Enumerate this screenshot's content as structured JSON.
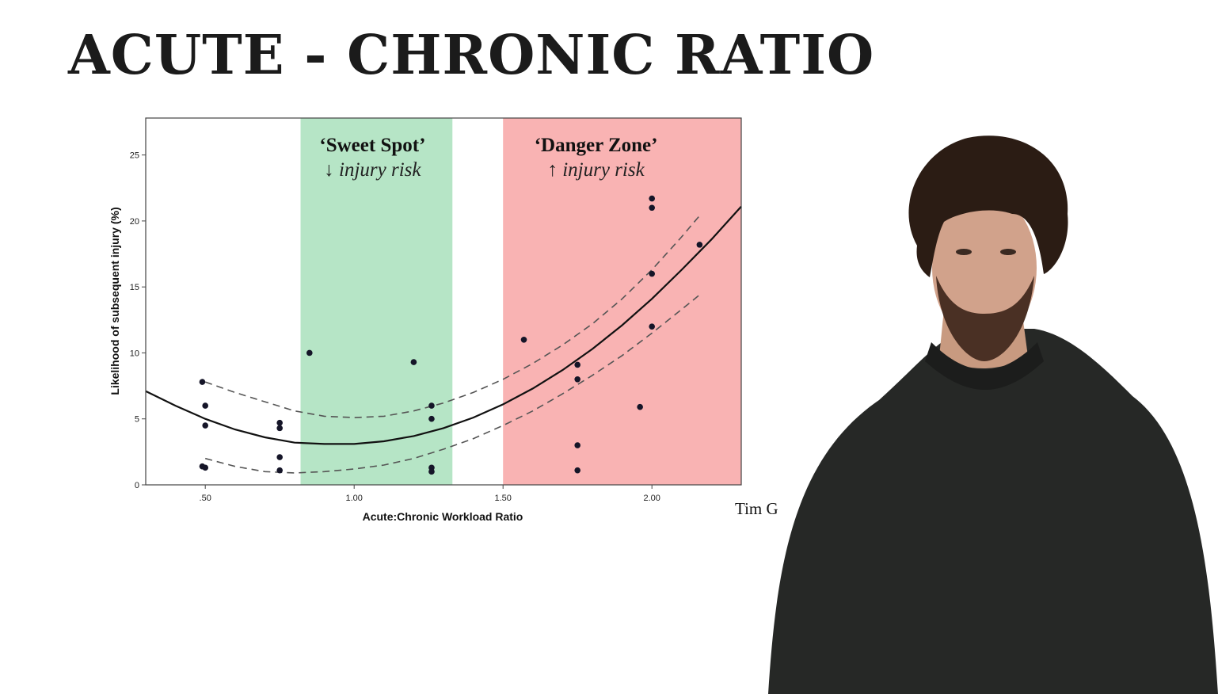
{
  "slide": {
    "title": "ACUTE - CHRONIC RATIO",
    "citation": "Tim G"
  },
  "colors": {
    "sweet_spot_band": "#b6e5c6",
    "danger_zone_band": "#f9b3b3",
    "axis": "#444444",
    "curve": "#111111",
    "points": "#151528"
  },
  "chart_data": {
    "type": "scatter",
    "title": "",
    "xlabel": "Acute:Chronic Workload Ratio",
    "ylabel": "Likelihood of subsequent injury (%)",
    "xlim": [
      0.3,
      2.3
    ],
    "ylim": [
      0,
      27.8
    ],
    "x_ticks": [
      ".50",
      "1.00",
      "1.50",
      "2.00"
    ],
    "y_ticks": [
      "0",
      "5",
      "10",
      "15",
      "20",
      "25"
    ],
    "grid": false,
    "zones": [
      {
        "title": "‘Sweet Spot’",
        "subtitle": "↓ injury risk",
        "x_range": [
          0.82,
          1.33
        ]
      },
      {
        "title": "‘Danger Zone’",
        "subtitle": "↑ injury risk",
        "x_range": [
          1.5,
          2.3
        ]
      }
    ],
    "points": [
      {
        "x": 0.49,
        "y": 7.8
      },
      {
        "x": 0.5,
        "y": 6.0
      },
      {
        "x": 0.5,
        "y": 4.5
      },
      {
        "x": 0.5,
        "y": 1.3
      },
      {
        "x": 0.49,
        "y": 1.4
      },
      {
        "x": 0.75,
        "y": 4.7
      },
      {
        "x": 0.75,
        "y": 4.3
      },
      {
        "x": 0.75,
        "y": 2.1
      },
      {
        "x": 0.75,
        "y": 1.1
      },
      {
        "x": 0.85,
        "y": 10.0
      },
      {
        "x": 1.2,
        "y": 9.3
      },
      {
        "x": 1.26,
        "y": 6.0
      },
      {
        "x": 1.26,
        "y": 5.0
      },
      {
        "x": 1.26,
        "y": 1.3
      },
      {
        "x": 1.26,
        "y": 1.0
      },
      {
        "x": 1.57,
        "y": 11.0
      },
      {
        "x": 1.75,
        "y": 9.1
      },
      {
        "x": 1.75,
        "y": 8.0
      },
      {
        "x": 1.75,
        "y": 3.0
      },
      {
        "x": 1.75,
        "y": 1.1
      },
      {
        "x": 1.96,
        "y": 5.9
      },
      {
        "x": 2.0,
        "y": 21.7
      },
      {
        "x": 2.0,
        "y": 21.0
      },
      {
        "x": 2.0,
        "y": 16.0
      },
      {
        "x": 2.0,
        "y": 12.0
      },
      {
        "x": 2.16,
        "y": 18.2
      }
    ],
    "fit_curve": {
      "x": [
        0.3,
        0.4,
        0.5,
        0.6,
        0.7,
        0.8,
        0.9,
        1.0,
        1.1,
        1.2,
        1.3,
        1.4,
        1.5,
        1.6,
        1.7,
        1.8,
        1.9,
        2.0,
        2.1,
        2.2,
        2.3
      ],
      "y": [
        7.1,
        6.0,
        5.0,
        4.2,
        3.6,
        3.2,
        3.1,
        3.1,
        3.3,
        3.7,
        4.3,
        5.1,
        6.1,
        7.3,
        8.7,
        10.3,
        12.1,
        14.1,
        16.3,
        18.6,
        21.1
      ]
    },
    "ci_upper": {
      "x": [
        0.5,
        0.6,
        0.7,
        0.8,
        0.9,
        1.0,
        1.1,
        1.2,
        1.3,
        1.4,
        1.5,
        1.6,
        1.7,
        1.8,
        1.9,
        2.0,
        2.1,
        2.16
      ],
      "y": [
        7.8,
        7.0,
        6.3,
        5.6,
        5.2,
        5.1,
        5.2,
        5.6,
        6.2,
        7.0,
        8.0,
        9.2,
        10.6,
        12.2,
        14.1,
        16.3,
        18.8,
        20.4
      ]
    },
    "ci_lower": {
      "x": [
        0.5,
        0.6,
        0.7,
        0.8,
        0.9,
        1.0,
        1.1,
        1.2,
        1.3,
        1.4,
        1.5,
        1.6,
        1.7,
        1.8,
        1.9,
        2.0,
        2.1,
        2.16
      ],
      "y": [
        2.0,
        1.4,
        1.0,
        0.9,
        1.0,
        1.2,
        1.5,
        2.0,
        2.7,
        3.5,
        4.5,
        5.6,
        6.9,
        8.3,
        9.8,
        11.5,
        13.3,
        14.4
      ]
    }
  }
}
